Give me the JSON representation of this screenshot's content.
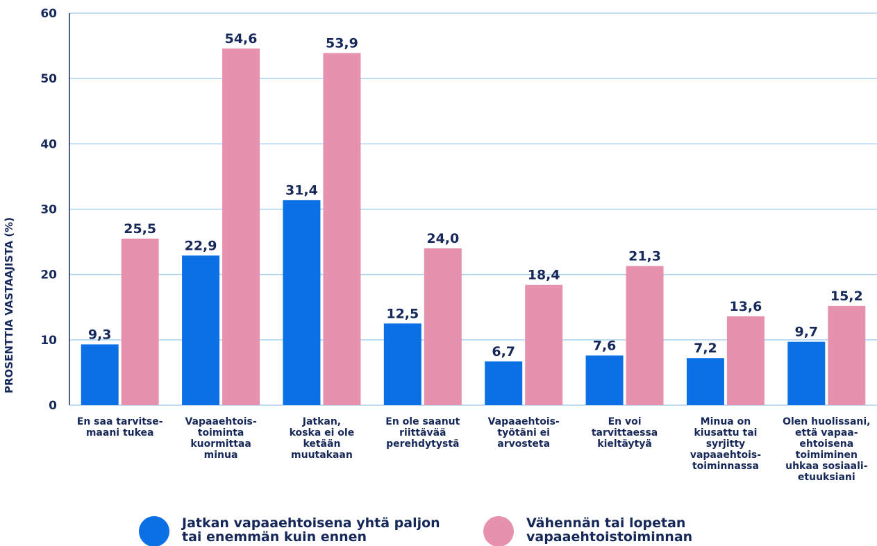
{
  "chart_data": {
    "type": "bar",
    "y_axis_label": "PROSENTTIA VASTAAJISTA (%)",
    "categories": [
      "En saa tarvitse-\nmaani tukea",
      "Vapaaehtois-\ntoiminta\nkuormittaa\nminua",
      "Jatkan,\nkoska ei ole\nketään\nmuutakaan",
      "En ole saanut\nriittävää\nperehdytystä",
      "Vapaaehtois-\ntyötäni ei\narvosteta",
      "En voi\ntarvittaessa\nkieltäytyä",
      "Minua on\nkiusattu tai\nsyrjitty\nvapaaehtois-\ntoiminnassa",
      "Olen huolissani,\nettä vapaa-\nehtoisena\ntoimiminen\nuhkaa sosiaali-\netuuksiani"
    ],
    "series": [
      {
        "name": "Jatkan vapaaehtoisena yhtä paljon\ntai enemmän kuin ennen",
        "color": "#0a70e4",
        "values": [
          9.3,
          22.9,
          31.4,
          12.5,
          6.7,
          7.6,
          7.2,
          9.7
        ],
        "value_labels": [
          "9,3",
          "22,9",
          "31,4",
          "12,5",
          "6,7",
          "7,6",
          "7,2",
          "9,7"
        ]
      },
      {
        "name": "Vähennän tai lopetan\nvapaaehtoistoiminnan",
        "color": "#e692ae",
        "values": [
          25.5,
          54.6,
          53.9,
          24.0,
          18.4,
          21.3,
          13.6,
          15.2
        ],
        "value_labels": [
          "25,5",
          "54,6",
          "53,9",
          "24,0",
          "18,4",
          "21,3",
          "13,6",
          "15,2"
        ]
      }
    ],
    "ylim": [
      0,
      60
    ],
    "yticks": [
      0,
      10,
      20,
      30,
      40,
      50,
      60
    ],
    "grid": true
  }
}
